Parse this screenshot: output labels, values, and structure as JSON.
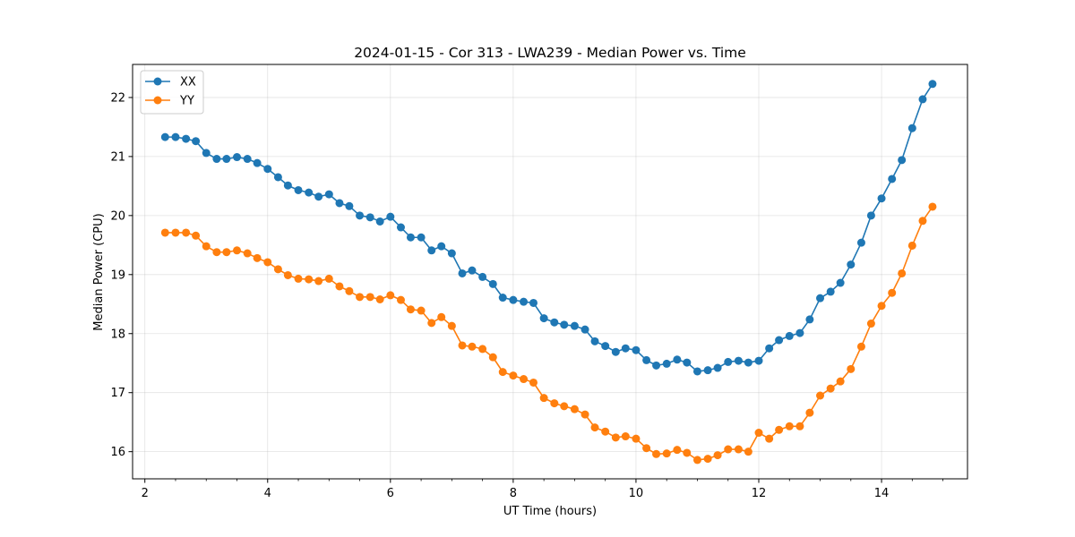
{
  "chart_data": {
    "type": "line",
    "title": "2024-01-15 - Cor 313 - LWA239 - Median Power vs. Time",
    "xlabel": "UT Time (hours)",
    "ylabel": "Median Power (CPU)",
    "xlim": [
      1.8,
      15.4
    ],
    "ylim": [
      15.54,
      22.56
    ],
    "xticks": [
      2,
      4,
      6,
      8,
      10,
      12,
      14
    ],
    "xtick_labels": [
      "2",
      "4",
      "6",
      "8",
      "10",
      "12",
      "14"
    ],
    "yticks": [
      16,
      17,
      18,
      19,
      20,
      21,
      22
    ],
    "ytick_labels": [
      "16",
      "17",
      "18",
      "19",
      "20",
      "21",
      "22"
    ],
    "grid": true,
    "legend": "top-left",
    "x": [
      2.33,
      2.5,
      2.67,
      2.83,
      3.0,
      3.17,
      3.33,
      3.5,
      3.67,
      3.83,
      4.0,
      4.17,
      4.33,
      4.5,
      4.67,
      4.83,
      5.0,
      5.17,
      5.33,
      5.5,
      5.67,
      5.83,
      6.0,
      6.17,
      6.33,
      6.5,
      6.67,
      6.83,
      7.0,
      7.17,
      7.33,
      7.5,
      7.67,
      7.83,
      8.0,
      8.17,
      8.33,
      8.5,
      8.67,
      8.83,
      9.0,
      9.17,
      9.33,
      9.5,
      9.67,
      9.83,
      10.0,
      10.17,
      10.33,
      10.5,
      10.67,
      10.83,
      11.0,
      11.17,
      11.33,
      11.5,
      11.67,
      11.83,
      12.0,
      12.17,
      12.33,
      12.5,
      12.67,
      12.83,
      13.0,
      13.17,
      13.33,
      13.5,
      13.67,
      13.83,
      14.0,
      14.17,
      14.33,
      14.5,
      14.67,
      14.83
    ],
    "series": [
      {
        "name": "XX",
        "color": "#1f77b4",
        "values": [
          21.33,
          21.33,
          21.3,
          21.26,
          21.06,
          20.96,
          20.96,
          20.99,
          20.96,
          20.89,
          20.79,
          20.65,
          20.51,
          20.43,
          20.39,
          20.32,
          20.36,
          20.21,
          20.16,
          20.0,
          19.97,
          19.9,
          19.98,
          19.8,
          19.63,
          19.63,
          19.41,
          19.48,
          19.36,
          19.02,
          19.07,
          18.96,
          18.84,
          18.61,
          18.57,
          18.54,
          18.52,
          18.26,
          18.19,
          18.15,
          18.13,
          18.07,
          17.87,
          17.79,
          17.69,
          17.75,
          17.72,
          17.55,
          17.46,
          17.49,
          17.56,
          17.51,
          17.36,
          17.38,
          17.42,
          17.52,
          17.54,
          17.51,
          17.54,
          17.75,
          17.89,
          17.96,
          18.01,
          18.24,
          18.6,
          18.71,
          18.86,
          19.17,
          19.54,
          20.0,
          20.29,
          20.62,
          20.94,
          21.48,
          21.97,
          22.23
        ]
      },
      {
        "name": "YY",
        "color": "#ff7f0e",
        "values": [
          19.71,
          19.71,
          19.71,
          19.66,
          19.48,
          19.38,
          19.38,
          19.41,
          19.36,
          19.28,
          19.21,
          19.09,
          18.99,
          18.93,
          18.92,
          18.89,
          18.93,
          18.8,
          18.72,
          18.62,
          18.62,
          18.58,
          18.65,
          18.57,
          18.41,
          18.39,
          18.18,
          18.28,
          18.13,
          17.8,
          17.78,
          17.74,
          17.6,
          17.35,
          17.29,
          17.23,
          17.17,
          16.91,
          16.82,
          16.77,
          16.72,
          16.63,
          16.41,
          16.34,
          16.24,
          16.26,
          16.22,
          16.06,
          15.96,
          15.97,
          16.03,
          15.98,
          15.86,
          15.88,
          15.94,
          16.04,
          16.04,
          16.0,
          16.32,
          16.22,
          16.37,
          16.43,
          16.43,
          16.66,
          16.95,
          17.07,
          17.19,
          17.4,
          17.78,
          18.17,
          18.47,
          18.69,
          19.02,
          19.49,
          19.91,
          20.15
        ]
      }
    ]
  }
}
